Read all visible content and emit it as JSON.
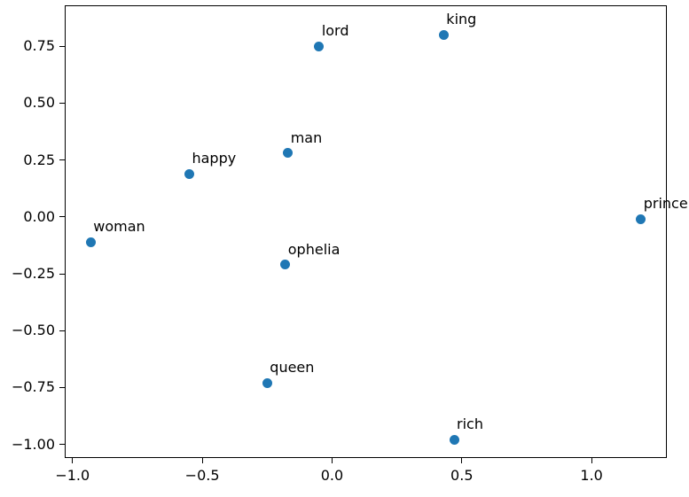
{
  "figure": {
    "background": "#ffffff",
    "spine_color": "#000000",
    "tick_color": "#000000",
    "label_color": "#000000"
  },
  "chart_data": {
    "type": "scatter",
    "title": "",
    "xlabel": "",
    "ylabel": "",
    "grid": false,
    "legend": null,
    "marker_color": "#1f77b4",
    "xlim": [
      -1.03,
      1.29
    ],
    "ylim": [
      -1.06,
      0.93
    ],
    "xticks": [
      {
        "value": -1.0,
        "label": "−1.0"
      },
      {
        "value": -0.5,
        "label": "−0.5"
      },
      {
        "value": 0.0,
        "label": "0.0"
      },
      {
        "value": 0.5,
        "label": "0.5"
      },
      {
        "value": 1.0,
        "label": "1.0"
      }
    ],
    "yticks": [
      {
        "value": -1.0,
        "label": "−1.00"
      },
      {
        "value": -0.75,
        "label": "−0.75"
      },
      {
        "value": -0.5,
        "label": "−0.50"
      },
      {
        "value": -0.25,
        "label": "−0.25"
      },
      {
        "value": 0.0,
        "label": "0.00"
      },
      {
        "value": 0.25,
        "label": "0.25"
      },
      {
        "value": 0.5,
        "label": "0.50"
      },
      {
        "value": 0.75,
        "label": "0.75"
      }
    ],
    "points": [
      {
        "label": "king",
        "x": 0.43,
        "y": 0.8
      },
      {
        "label": "lord",
        "x": -0.05,
        "y": 0.75
      },
      {
        "label": "man",
        "x": -0.17,
        "y": 0.28
      },
      {
        "label": "happy",
        "x": -0.55,
        "y": 0.19
      },
      {
        "label": "woman",
        "x": -0.93,
        "y": -0.11
      },
      {
        "label": "ophelia",
        "x": -0.18,
        "y": -0.21
      },
      {
        "label": "prince",
        "x": 1.19,
        "y": -0.01
      },
      {
        "label": "queen",
        "x": -0.25,
        "y": -0.73
      },
      {
        "label": "rich",
        "x": 0.47,
        "y": -0.98
      }
    ]
  }
}
